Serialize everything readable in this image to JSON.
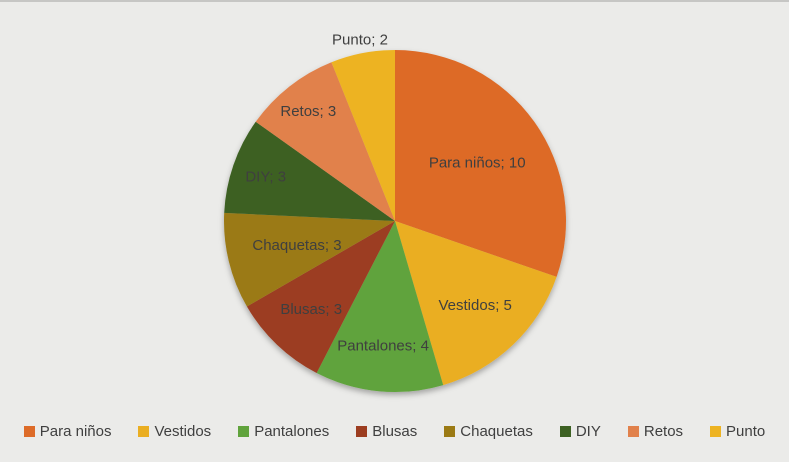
{
  "page": {
    "background_color": "#EBEBE9",
    "top_border_color": "#C6C6C4"
  },
  "chart_data": {
    "type": "pie",
    "title": "",
    "categories": [
      "Para niños",
      "Vestidos",
      "Pantalones",
      "Blusas",
      "Chaquetas",
      "DIY",
      "Retos",
      "Punto"
    ],
    "values": [
      10,
      5,
      4,
      3,
      3,
      3,
      3,
      2
    ],
    "total": 33,
    "colors": [
      "#DD6B28",
      "#EAAE22",
      "#60A33C",
      "#9C3D20",
      "#9B7A14",
      "#3D6123",
      "#E1814B",
      "#EDB322"
    ],
    "data_labels": [
      "Para niños; 10",
      "Vestidos; 5",
      "Pantalones; 4",
      "Blusas; 3",
      "Chaquetas; 3",
      "DIY; 3",
      "Retos; 3",
      "Punto; 2"
    ],
    "label_color": "#3F3F3F",
    "start_angle_deg": 0,
    "direction": "clockwise",
    "legend_position": "bottom",
    "legend_entries": [
      "Para niños",
      "Vestidos",
      "Pantalones",
      "Blusas",
      "Chaquetas",
      "DIY",
      "Retos",
      "Punto"
    ],
    "label_radius_fractions": [
      0.59,
      0.68,
      0.73,
      0.71,
      0.59,
      0.8,
      0.82,
      1.08
    ]
  }
}
